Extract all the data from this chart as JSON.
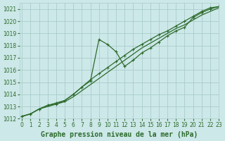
{
  "title": "Graphe pression niveau de la mer (hPa)",
  "bg_color": "#cde8e8",
  "grid_color": "#aacccc",
  "line_color": "#2d6b2d",
  "marker_color": "#2d6b2d",
  "xlim": [
    -0.3,
    23
  ],
  "ylim": [
    1012,
    1021.5
  ],
  "xticks": [
    0,
    1,
    2,
    3,
    4,
    5,
    6,
    7,
    8,
    9,
    10,
    11,
    12,
    13,
    14,
    15,
    16,
    17,
    18,
    19,
    20,
    21,
    22,
    23
  ],
  "yticks": [
    1012,
    1013,
    1014,
    1015,
    1016,
    1017,
    1018,
    1019,
    1020,
    1021
  ],
  "series": [
    [
      1012.2,
      1012.4,
      1012.8,
      1013.1,
      1013.3,
      1013.5,
      1014.0,
      1014.6,
      1015.1,
      1018.5,
      1018.1,
      1017.5,
      1016.3,
      1016.8,
      1017.4,
      1017.8,
      1018.3,
      1018.8,
      1019.2,
      1019.5,
      1020.3,
      1020.7,
      1021.0,
      1021.2
    ],
    [
      1012.2,
      1012.4,
      1012.8,
      1013.0,
      1013.2,
      1013.4,
      1013.8,
      1014.3,
      1014.8,
      1015.3,
      1015.8,
      1016.3,
      1016.8,
      1017.3,
      1017.8,
      1018.2,
      1018.6,
      1019.0,
      1019.4,
      1019.7,
      1020.1,
      1020.5,
      1020.8,
      1021.1
    ],
    [
      1012.2,
      1012.4,
      1012.8,
      1013.1,
      1013.2,
      1013.5,
      1014.0,
      1014.6,
      1015.2,
      1015.7,
      1016.2,
      1016.7,
      1017.2,
      1017.7,
      1018.1,
      1018.5,
      1018.9,
      1019.2,
      1019.6,
      1020.0,
      1020.4,
      1020.8,
      1021.1,
      1021.2
    ]
  ],
  "font_color": "#2d6b2d",
  "label_fontsize": 7,
  "tick_fontsize": 5.5
}
